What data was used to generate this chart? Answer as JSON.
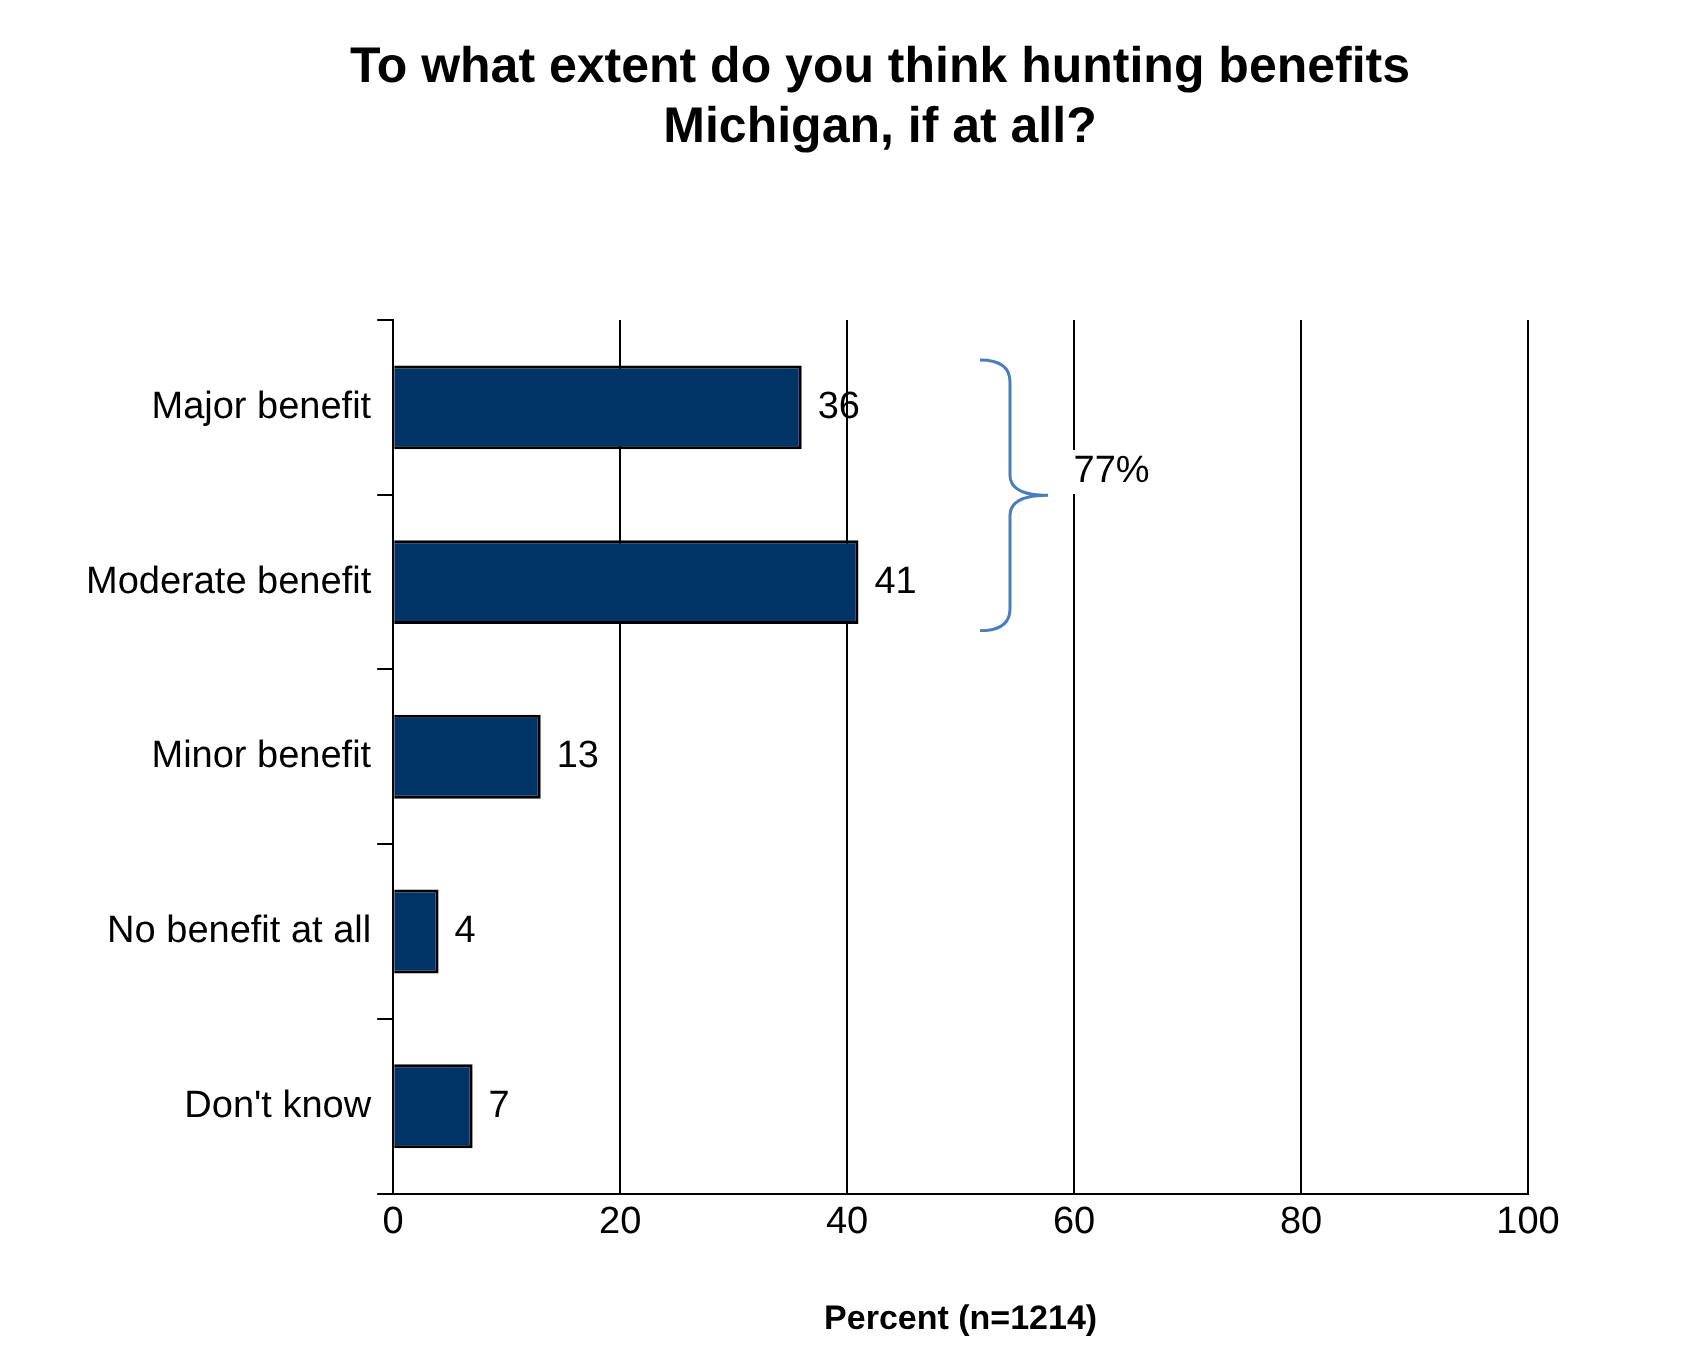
{
  "chart_data": {
    "type": "bar",
    "orientation": "horizontal",
    "title": "To what extent do you think hunting benefits Michigan, if at all?",
    "xlabel": "Percent (n=1214)",
    "categories": [
      "Major benefit",
      "Moderate benefit",
      "Minor benefit",
      "No benefit at all",
      "Don't know"
    ],
    "values": [
      36,
      41,
      13,
      4,
      7
    ],
    "color": "#003366",
    "data_labels": true,
    "xlim": [
      0,
      100
    ],
    "xticks": [
      0,
      20,
      40,
      60,
      80,
      100
    ],
    "grid": "x",
    "legend": false,
    "annotations": [
      "77%"
    ]
  }
}
